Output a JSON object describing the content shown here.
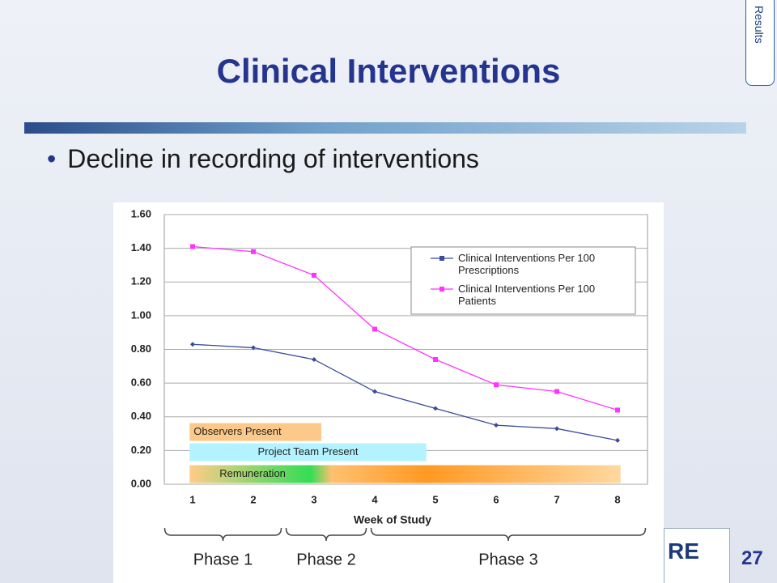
{
  "slide": {
    "title": "Clinical Interventions",
    "tab": "Results",
    "bullet": "Decline in recording of interventions",
    "page_number": "27",
    "logo_text": "RE"
  },
  "chart_data": {
    "type": "line",
    "x_label": "Week of Study",
    "categories": [
      "1",
      "2",
      "3",
      "4",
      "5",
      "6",
      "7",
      "8"
    ],
    "series": [
      {
        "name": "Clinical Interventions Per 100 Prescriptions",
        "color": "#3b4a9c",
        "values": [
          0.83,
          0.81,
          0.74,
          0.55,
          0.45,
          0.35,
          0.33,
          0.26
        ]
      },
      {
        "name": "Clinical Interventions Per 100 Patients",
        "color": "#ff33ff",
        "values": [
          1.41,
          1.38,
          1.24,
          0.92,
          0.74,
          0.59,
          0.55,
          0.44
        ]
      }
    ],
    "ylim": [
      0,
      1.6
    ],
    "yticks": [
      {
        "value": 0,
        "label": "0.00"
      },
      {
        "value": 0.2,
        "label": "0.20"
      },
      {
        "value": 0.4,
        "label": "0.40"
      },
      {
        "value": 0.6,
        "label": "0.60"
      },
      {
        "value": 0.8,
        "label": "0.80"
      },
      {
        "value": 1.0,
        "label": "1.00"
      },
      {
        "value": 1.2,
        "label": "1.20"
      },
      {
        "value": 1.4,
        "label": "1.40"
      },
      {
        "value": 1.6,
        "label": "1.60"
      }
    ],
    "grid": true,
    "legend": "upper right",
    "periods": [
      {
        "label": "Observers Present",
        "start": 0.95,
        "end": 3.12,
        "color": "#fcc98a"
      },
      {
        "label": "Project Team Present",
        "start": 0.95,
        "end": 4.85,
        "color": "#b3f3ff"
      },
      {
        "label": "Remuneration",
        "start": 0.95,
        "end": 8.05,
        "color": "#ffd39a"
      }
    ],
    "phases": [
      {
        "label": "Phase 1",
        "start": 0.5,
        "end": 2.5
      },
      {
        "label": "Phase 2",
        "start": 2.5,
        "end": 3.9
      },
      {
        "label": "Phase 3",
        "start": 3.9,
        "end": 8.5
      }
    ]
  }
}
